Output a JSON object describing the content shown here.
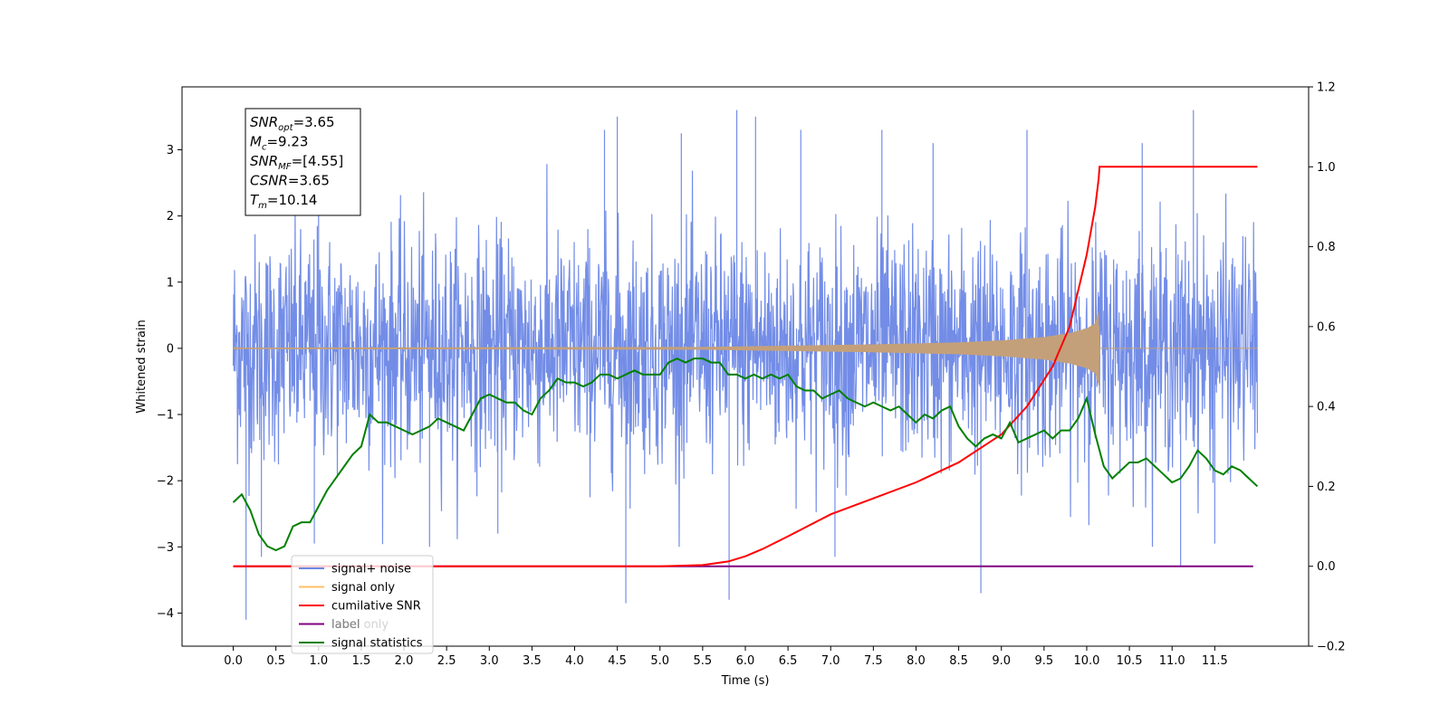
{
  "chart_data": {
    "type": "line",
    "xlabel": "Time (s)",
    "ylabel": "Whitened strain",
    "xlim": [
      -0.6,
      12.6
    ],
    "ylim": [
      -4.5,
      3.95
    ],
    "y2lim": [
      -0.2,
      1.2
    ],
    "grid": false,
    "legend_position": "lower-left",
    "x_ticks": [
      0.0,
      0.5,
      1.0,
      1.5,
      2.0,
      2.5,
      3.0,
      3.5,
      4.0,
      4.5,
      5.0,
      5.5,
      6.0,
      6.5,
      7.0,
      7.5,
      8.0,
      8.5,
      9.0,
      9.5,
      10.0,
      10.5,
      11.0,
      11.5
    ],
    "x_tick_labels": [
      "0.0",
      "0.5",
      "1.0",
      "1.5",
      "2.0",
      "2.5",
      "3.0",
      "3.5",
      "4.0",
      "4.5",
      "5.0",
      "5.5",
      "6.0",
      "6.5",
      "7.0",
      "7.5",
      "8.0",
      "8.5",
      "9.0",
      "9.5",
      "10.0",
      "10.5",
      "11.0",
      "11.5"
    ],
    "y_ticks": [
      -4,
      -3,
      -2,
      -1,
      0,
      1,
      2,
      3
    ],
    "y_tick_labels": [
      "−4",
      "−3",
      "−2",
      "−1",
      "0",
      "1",
      "2",
      "3"
    ],
    "y2_ticks": [
      -0.2,
      0.0,
      0.2,
      0.4,
      0.6,
      0.8,
      1.0,
      1.2
    ],
    "y2_tick_labels": [
      "−0.2",
      "0.0",
      "0.2",
      "0.4",
      "0.6",
      "0.8",
      "1.0",
      "1.2"
    ],
    "stats_box": [
      {
        "base": "SNR",
        "sub": "opt",
        "value": "=3.65"
      },
      {
        "base": "M",
        "sub": "c",
        "value": "=9.23"
      },
      {
        "base": "SNR",
        "sub": "MF",
        "value": "=[4.55]"
      },
      {
        "base": "CSNR",
        "sub": "",
        "value": "=3.65"
      },
      {
        "base": "T",
        "sub": "m",
        "value": "=10.14"
      }
    ],
    "legend": [
      {
        "label": "signal+ noise",
        "color": "#6b87e6"
      },
      {
        "label": "signal only",
        "color": "#ffbf66"
      },
      {
        "label": "cumilative SNR",
        "color": "#ff0000"
      },
      {
        "label": "label",
        "color": "#800080"
      },
      {
        "label": "label only",
        "color": "#cccccc"
      },
      {
        "label": "signal statistics",
        "color": "#008000"
      }
    ],
    "series": [
      {
        "name": "signal+ noise",
        "axis": "left",
        "color": "#6b87e6",
        "x_range": [
          0.0,
          12.0
        ],
        "amplitude": 1.0,
        "spikes": [
          [
            0.15,
            -4.1
          ],
          [
            0.33,
            -3.15
          ],
          [
            0.95,
            -2.95
          ],
          [
            1.0,
            2.9
          ],
          [
            2.3,
            -3.0
          ],
          [
            3.1,
            -2.8
          ],
          [
            4.35,
            3.3
          ],
          [
            4.5,
            3.5
          ],
          [
            4.6,
            -3.85
          ],
          [
            5.25,
            3.25
          ],
          [
            5.81,
            -3.8
          ],
          [
            5.9,
            3.6
          ],
          [
            6.12,
            3.5
          ],
          [
            6.65,
            3.3
          ],
          [
            7.05,
            -3.15
          ],
          [
            7.6,
            3.3
          ],
          [
            8.2,
            3.1
          ],
          [
            8.76,
            -3.7
          ],
          [
            9.3,
            3.3
          ],
          [
            10.65,
            3.1
          ],
          [
            11.25,
            3.6
          ],
          [
            11.1,
            -3.3
          ],
          [
            11.5,
            -2.95
          ]
        ]
      },
      {
        "name": "signal only",
        "axis": "left",
        "color": "#c4a07a",
        "x": [
          0.0,
          5.5,
          6.5,
          7.5,
          8.5,
          9.0,
          9.5,
          9.8,
          10.0,
          10.1,
          10.14,
          10.15,
          12.0
        ],
        "envelope": [
          0.01,
          0.02,
          0.04,
          0.06,
          0.09,
          0.12,
          0.17,
          0.23,
          0.3,
          0.38,
          0.56,
          0.0,
          0.0
        ]
      },
      {
        "name": "cumilative SNR",
        "axis": "right",
        "color": "#ff0000",
        "x": [
          0.0,
          5.0,
          5.5,
          5.8,
          6.0,
          6.2,
          6.5,
          7.0,
          7.5,
          8.0,
          8.5,
          9.0,
          9.3,
          9.6,
          9.8,
          10.0,
          10.1,
          10.14,
          10.15,
          12.0
        ],
        "values": [
          0.0,
          0.0,
          0.003,
          0.012,
          0.025,
          0.043,
          0.075,
          0.13,
          0.17,
          0.21,
          0.26,
          0.33,
          0.4,
          0.5,
          0.6,
          0.78,
          0.9,
          0.97,
          1.0,
          1.0
        ]
      },
      {
        "name": "label",
        "axis": "right",
        "color": "#800080",
        "x": [
          0.0,
          11.95
        ],
        "values": [
          0.0,
          0.0
        ]
      },
      {
        "name": "signal statistics",
        "axis": "right",
        "color": "#008000",
        "x": [
          0.0,
          0.1,
          0.2,
          0.3,
          0.4,
          0.5,
          0.6,
          0.7,
          0.8,
          0.9,
          1.0,
          1.1,
          1.2,
          1.3,
          1.4,
          1.5,
          1.6,
          1.7,
          1.8,
          1.9,
          2.0,
          2.1,
          2.2,
          2.3,
          2.4,
          2.5,
          2.6,
          2.7,
          2.8,
          2.9,
          3.0,
          3.1,
          3.2,
          3.3,
          3.4,
          3.5,
          3.6,
          3.7,
          3.8,
          3.9,
          4.0,
          4.1,
          4.2,
          4.3,
          4.4,
          4.5,
          4.6,
          4.7,
          4.8,
          4.9,
          5.0,
          5.1,
          5.2,
          5.3,
          5.4,
          5.5,
          5.6,
          5.7,
          5.8,
          5.9,
          6.0,
          6.1,
          6.2,
          6.3,
          6.4,
          6.5,
          6.6,
          6.7,
          6.8,
          6.9,
          7.0,
          7.1,
          7.2,
          7.3,
          7.4,
          7.5,
          7.6,
          7.7,
          7.8,
          7.9,
          8.0,
          8.1,
          8.2,
          8.3,
          8.4,
          8.5,
          8.6,
          8.7,
          8.8,
          8.9,
          9.0,
          9.1,
          9.2,
          9.3,
          9.4,
          9.5,
          9.6,
          9.7,
          9.8,
          9.9,
          10.0,
          10.1,
          10.2,
          10.3,
          10.4,
          10.5,
          10.6,
          10.7,
          10.8,
          10.9,
          11.0,
          11.1,
          11.2,
          11.3,
          11.4,
          11.5,
          11.6,
          11.7,
          11.8,
          11.9,
          12.0
        ],
        "values": [
          0.16,
          0.18,
          0.14,
          0.08,
          0.05,
          0.04,
          0.05,
          0.1,
          0.11,
          0.11,
          0.15,
          0.19,
          0.22,
          0.25,
          0.28,
          0.3,
          0.38,
          0.36,
          0.36,
          0.35,
          0.34,
          0.33,
          0.34,
          0.35,
          0.37,
          0.36,
          0.35,
          0.34,
          0.38,
          0.42,
          0.43,
          0.42,
          0.41,
          0.41,
          0.39,
          0.38,
          0.42,
          0.44,
          0.47,
          0.46,
          0.46,
          0.45,
          0.46,
          0.48,
          0.48,
          0.47,
          0.48,
          0.49,
          0.48,
          0.48,
          0.48,
          0.51,
          0.52,
          0.51,
          0.52,
          0.52,
          0.51,
          0.51,
          0.48,
          0.48,
          0.47,
          0.48,
          0.47,
          0.48,
          0.47,
          0.48,
          0.45,
          0.44,
          0.44,
          0.42,
          0.43,
          0.44,
          0.42,
          0.41,
          0.4,
          0.41,
          0.4,
          0.39,
          0.4,
          0.38,
          0.36,
          0.38,
          0.37,
          0.39,
          0.4,
          0.35,
          0.32,
          0.3,
          0.32,
          0.33,
          0.32,
          0.36,
          0.31,
          0.32,
          0.33,
          0.34,
          0.32,
          0.34,
          0.34,
          0.37,
          0.42,
          0.33,
          0.25,
          0.22,
          0.24,
          0.26,
          0.26,
          0.27,
          0.25,
          0.23,
          0.21,
          0.22,
          0.25,
          0.29,
          0.27,
          0.24,
          0.23,
          0.25,
          0.24,
          0.22,
          0.2
        ]
      }
    ]
  }
}
